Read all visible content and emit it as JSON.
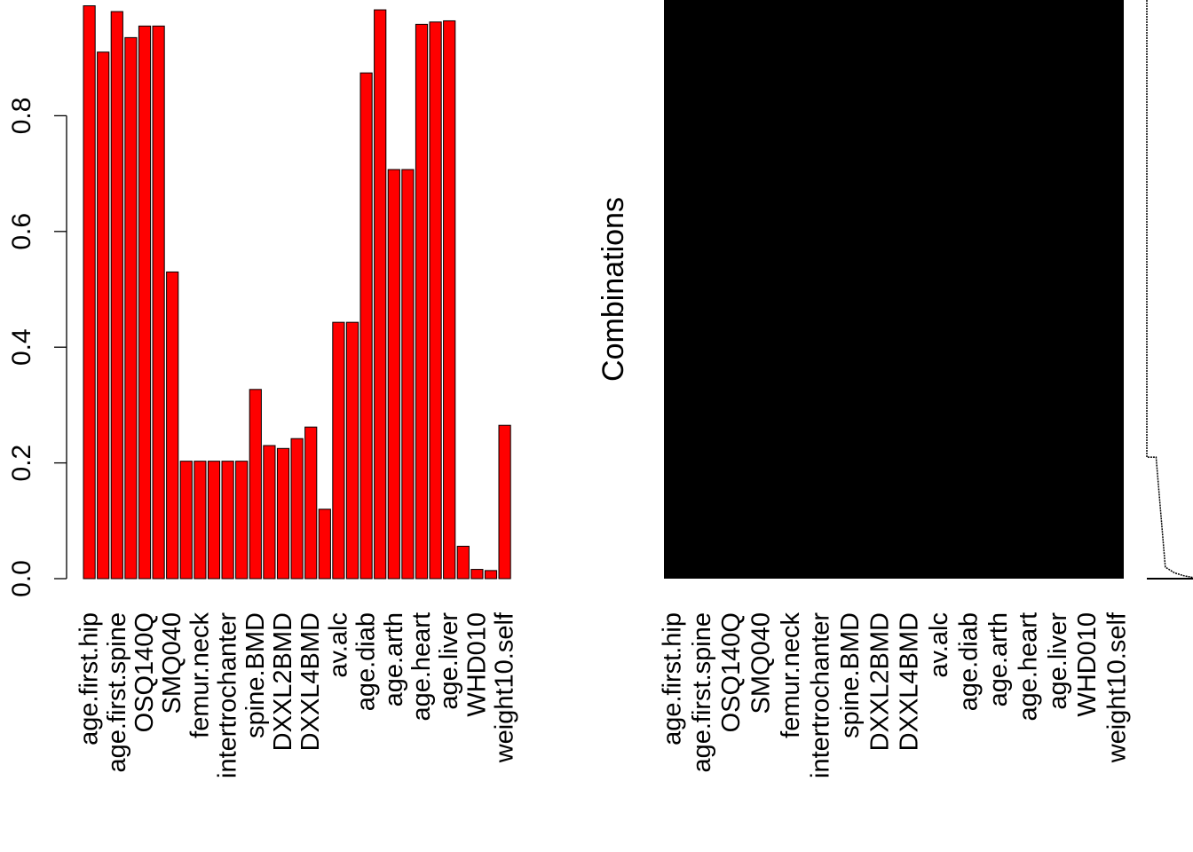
{
  "chart_data": [
    {
      "type": "bar",
      "title": "",
      "xlabel": "",
      "ylabel": "",
      "ylim": [
        0,
        1
      ],
      "bar_color": "#ff0000",
      "y_ticks": [
        "0.0",
        "0.2",
        "0.4",
        "0.6",
        "0.8"
      ],
      "y_tick_values": [
        0.0,
        0.2,
        0.4,
        0.6,
        0.8
      ],
      "categories": [
        "age.first.hip",
        "",
        "age.first.spine",
        "",
        "OSQ140Q",
        "",
        "SMQ040",
        "",
        "femur.neck",
        "",
        "intertrochanter",
        "",
        "spine.BMD",
        "",
        "DXXL2BMD",
        "",
        "DXXL4BMD",
        "",
        "av.alc",
        "",
        "age.diab",
        "",
        "age.arth",
        "",
        "age.heart",
        "",
        "age.liver",
        "",
        "WHD010",
        "",
        "weight10.self"
      ],
      "values": [
        0.99,
        0.91,
        0.98,
        0.935,
        0.955,
        0.955,
        0.53,
        0.203,
        0.203,
        0.203,
        0.203,
        0.203,
        0.327,
        0.23,
        0.225,
        0.242,
        0.262,
        0.12,
        0.443,
        0.443,
        0.874,
        0.983,
        0.707,
        0.707,
        0.958,
        0.962,
        0.964,
        0.056,
        0.016,
        0.014,
        0.265
      ]
    },
    {
      "type": "heatmap",
      "ylabel": "Combinations",
      "fill_color": "#000000",
      "categories": [
        "age.first.hip",
        "",
        "age.first.spine",
        "",
        "OSQ140Q",
        "",
        "SMQ040",
        "",
        "femur.neck",
        "",
        "intertrochanter",
        "",
        "spine.BMD",
        "",
        "DXXL2BMD",
        "",
        "DXXL4BMD",
        "",
        "av.alc",
        "",
        "age.diab",
        "",
        "age.arth",
        "",
        "age.heart",
        "",
        "age.liver",
        "",
        "WHD010",
        "",
        "weight10.self"
      ],
      "combination_frequency_profile": [
        1.0,
        0.21,
        0.02,
        0.01,
        0.005,
        0.002
      ]
    }
  ]
}
